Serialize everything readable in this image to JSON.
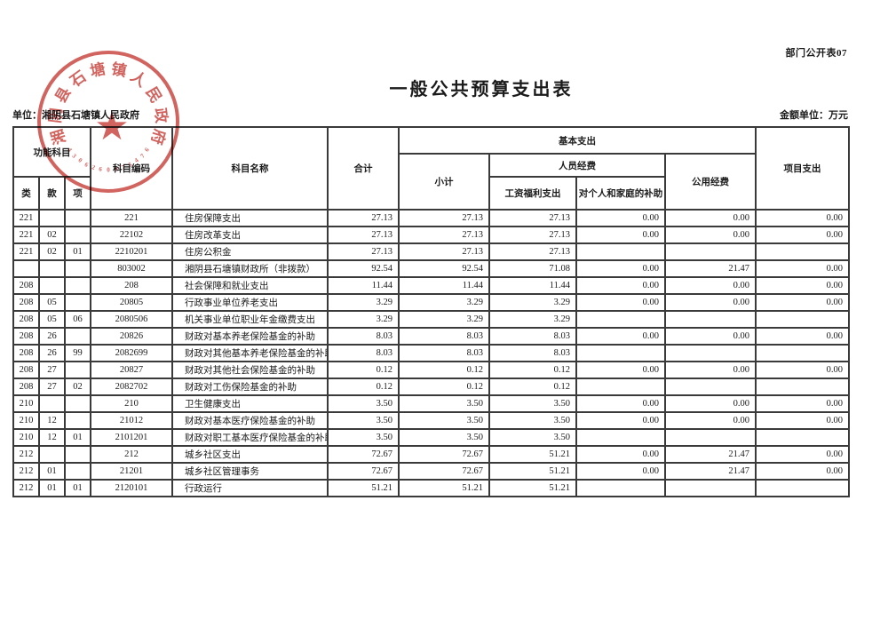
{
  "page": {
    "doc_code": "部门公开表07",
    "title": "一般公共预算支出表",
    "unit_label": "单位：湘阴县石塘镇人民政府",
    "amount_unit_label": "金额单位：万元"
  },
  "stamp": {
    "text": "湘阴县石塘镇人民政府",
    "serial": "4306260075476",
    "star": "★",
    "color": "#c7413c"
  },
  "table": {
    "header": {
      "functional_subject": "功能科目",
      "lei": "类",
      "kuan": "款",
      "xiang": "项",
      "subject_code": "科目编码",
      "subject_name": "科目名称",
      "total": "合计",
      "basic_expenditure": "基本支出",
      "subtotal": "小计",
      "personnel_funds": "人员经费",
      "wage_welfare": "工资福利支出",
      "individual_family_subsidy": "对个人和家庭的补助",
      "public_funds": "公用经费",
      "project_expenditure": "项目支出"
    },
    "rows": [
      [
        "221",
        "",
        "",
        "221",
        "住房保障支出",
        "27.13",
        "27.13",
        "27.13",
        "0.00",
        "0.00",
        "0.00"
      ],
      [
        "221",
        "02",
        "",
        "22102",
        "住房改革支出",
        "27.13",
        "27.13",
        "27.13",
        "0.00",
        "0.00",
        "0.00"
      ],
      [
        "221",
        "02",
        "01",
        "2210201",
        "住房公积金",
        "27.13",
        "27.13",
        "27.13",
        "",
        "",
        ""
      ],
      [
        "",
        "",
        "",
        "803002",
        "湘阴县石塘镇财政所（非拨款）",
        "92.54",
        "92.54",
        "71.08",
        "0.00",
        "21.47",
        "0.00"
      ],
      [
        "208",
        "",
        "",
        "208",
        "社会保障和就业支出",
        "11.44",
        "11.44",
        "11.44",
        "0.00",
        "0.00",
        "0.00"
      ],
      [
        "208",
        "05",
        "",
        "20805",
        "行政事业单位养老支出",
        "3.29",
        "3.29",
        "3.29",
        "0.00",
        "0.00",
        "0.00"
      ],
      [
        "208",
        "05",
        "06",
        "2080506",
        "机关事业单位职业年金缴费支出",
        "3.29",
        "3.29",
        "3.29",
        "",
        "",
        ""
      ],
      [
        "208",
        "26",
        "",
        "20826",
        "财政对基本养老保险基金的补助",
        "8.03",
        "8.03",
        "8.03",
        "0.00",
        "0.00",
        "0.00"
      ],
      [
        "208",
        "26",
        "99",
        "2082699",
        "财政对其他基本养老保险基金的补助",
        "8.03",
        "8.03",
        "8.03",
        "",
        "",
        ""
      ],
      [
        "208",
        "27",
        "",
        "20827",
        "财政对其他社会保险基金的补助",
        "0.12",
        "0.12",
        "0.12",
        "0.00",
        "0.00",
        "0.00"
      ],
      [
        "208",
        "27",
        "02",
        "2082702",
        "财政对工伤保险基金的补助",
        "0.12",
        "0.12",
        "0.12",
        "",
        "",
        ""
      ],
      [
        "210",
        "",
        "",
        "210",
        "卫生健康支出",
        "3.50",
        "3.50",
        "3.50",
        "0.00",
        "0.00",
        "0.00"
      ],
      [
        "210",
        "12",
        "",
        "21012",
        "财政对基本医疗保险基金的补助",
        "3.50",
        "3.50",
        "3.50",
        "0.00",
        "0.00",
        "0.00"
      ],
      [
        "210",
        "12",
        "01",
        "2101201",
        "财政对职工基本医疗保险基金的补助",
        "3.50",
        "3.50",
        "3.50",
        "",
        "",
        ""
      ],
      [
        "212",
        "",
        "",
        "212",
        "城乡社区支出",
        "72.67",
        "72.67",
        "51.21",
        "0.00",
        "21.47",
        "0.00"
      ],
      [
        "212",
        "01",
        "",
        "21201",
        "城乡社区管理事务",
        "72.67",
        "72.67",
        "51.21",
        "0.00",
        "21.47",
        "0.00"
      ],
      [
        "212",
        "01",
        "01",
        "2120101",
        "行政运行",
        "51.21",
        "51.21",
        "51.21",
        "",
        "",
        ""
      ]
    ]
  }
}
